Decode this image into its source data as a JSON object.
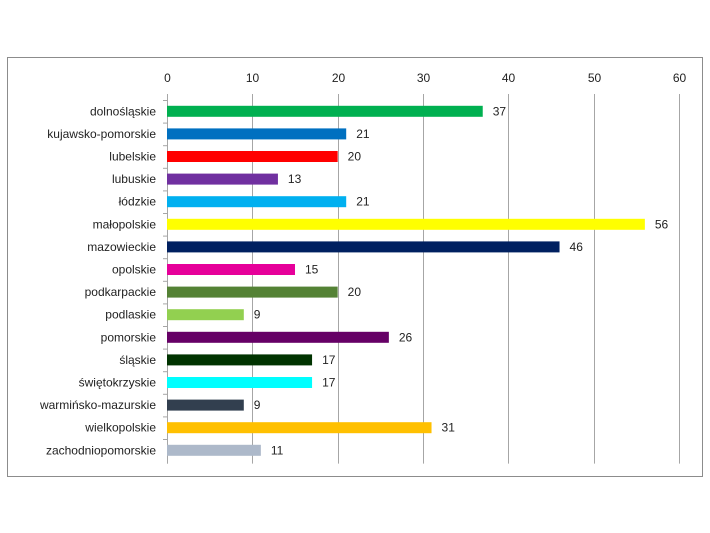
{
  "chart_data": {
    "type": "bar",
    "orientation": "horizontal",
    "title": "",
    "xlabel": "",
    "ylabel": "",
    "xlim": [
      0,
      60
    ],
    "x_ticks": [
      0,
      10,
      20,
      30,
      40,
      50,
      60
    ],
    "x_axis_position": "top",
    "grid": true,
    "legend": "none",
    "data_labels": true,
    "categories": [
      "dolnośląskie",
      "kujawsko-pomorskie",
      "lubelskie",
      "lubuskie",
      "łódzkie",
      "małopolskie",
      "mazowieckie",
      "opolskie",
      "podkarpackie",
      "podlaskie",
      "pomorskie",
      "śląskie",
      "świętokrzyskie",
      "warmińsko-mazurskie",
      "wielkopolskie",
      "zachodniopomorskie"
    ],
    "values": [
      37,
      21,
      20,
      13,
      21,
      56,
      46,
      15,
      20,
      9,
      26,
      17,
      17,
      9,
      31,
      11
    ],
    "colors": [
      "#00b050",
      "#0070c0",
      "#ff0000",
      "#7030a0",
      "#00b0f0",
      "#ffff00",
      "#002060",
      "#e6009a",
      "#548235",
      "#92d050",
      "#660066",
      "#003300",
      "#00ffff",
      "#323f4f",
      "#ffc000",
      "#adb9ca"
    ]
  }
}
